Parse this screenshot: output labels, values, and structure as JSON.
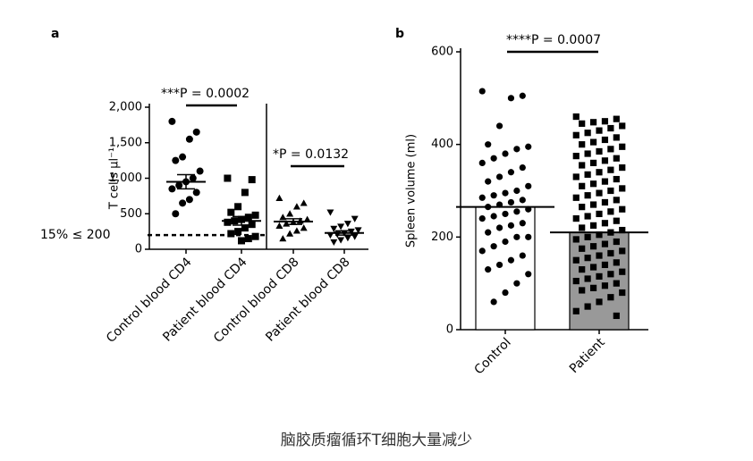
{
  "chart_data": [
    {
      "type": "strip",
      "panel_label": "a",
      "ylabel": "T cells µl⁻¹",
      "categories": [
        "Control blood CD4",
        "Patient blood CD4",
        "Control blood CD8",
        "Patient blood CD8"
      ],
      "markers": [
        "circle",
        "square",
        "triangle",
        "triangle-down"
      ],
      "values": [
        [
          1800,
          1650,
          1550,
          1300,
          1250,
          1100,
          1000,
          950,
          900,
          850,
          800,
          700,
          650,
          500
        ],
        [
          1000,
          980,
          800,
          600,
          520,
          480,
          450,
          420,
          400,
          380,
          350,
          300,
          250,
          220,
          180,
          150,
          120
        ],
        [
          720,
          650,
          600,
          500,
          450,
          420,
          400,
          380,
          360,
          330,
          300,
          260,
          220,
          150
        ],
        [
          520,
          430,
          360,
          320,
          290,
          270,
          250,
          230,
          210,
          200,
          180,
          160,
          130,
          100
        ]
      ],
      "means": [
        950,
        400,
        390,
        230
      ],
      "sem": [
        100,
        60,
        40,
        30
      ],
      "ref_line": {
        "value": 200,
        "label": "15% ≤ 200"
      },
      "annotations": [
        "***P = 0.0002",
        "*P = 0.0132"
      ],
      "ylim": [
        0,
        2000
      ],
      "yticks": [
        0,
        500,
        {
          "value": 1000,
          "label": "1,000"
        },
        {
          "value": 1500,
          "label": "1,500"
        },
        {
          "value": 2000,
          "label": "2,000"
        }
      ],
      "color": "#000000"
    },
    {
      "type": "bar-strip",
      "panel_label": "b",
      "ylabel": "Spleen volume (ml)",
      "categories": [
        "Control",
        "Patient"
      ],
      "markers": [
        "circle",
        "square"
      ],
      "bar_colors": [
        "#ffffff",
        "#999999"
      ],
      "means": [
        265,
        210
      ],
      "values": [
        [
          515,
          505,
          500,
          440,
          400,
          395,
          390,
          380,
          370,
          360,
          350,
          340,
          330,
          320,
          310,
          300,
          295,
          290,
          285,
          280,
          275,
          270,
          265,
          260,
          255,
          250,
          245,
          240,
          230,
          225,
          220,
          210,
          200,
          200,
          190,
          180,
          170,
          160,
          150,
          140,
          130,
          120,
          100,
          80,
          60
        ],
        [
          460,
          455,
          450,
          448,
          445,
          440,
          435,
          430,
          425,
          420,
          415,
          410,
          405,
          400,
          395,
          390,
          385,
          380,
          375,
          370,
          365,
          360,
          355,
          350,
          345,
          340,
          335,
          330,
          325,
          320,
          315,
          310,
          305,
          300,
          295,
          290,
          285,
          280,
          275,
          270,
          265,
          260,
          255,
          250,
          245,
          240,
          235,
          230,
          225,
          220,
          215,
          210,
          205,
          200,
          195,
          190,
          185,
          180,
          175,
          170,
          165,
          160,
          155,
          150,
          145,
          140,
          135,
          130,
          125,
          120,
          115,
          110,
          105,
          100,
          95,
          90,
          85,
          80,
          70,
          60,
          50,
          40,
          30
        ]
      ],
      "annotations": [
        "****P = 0.0007"
      ],
      "ylim": [
        0,
        600
      ],
      "yticks": [
        0,
        200,
        400,
        600
      ],
      "color": "#000000"
    }
  ],
  "caption": "脑胶质瘤循环T细胞大量减少"
}
